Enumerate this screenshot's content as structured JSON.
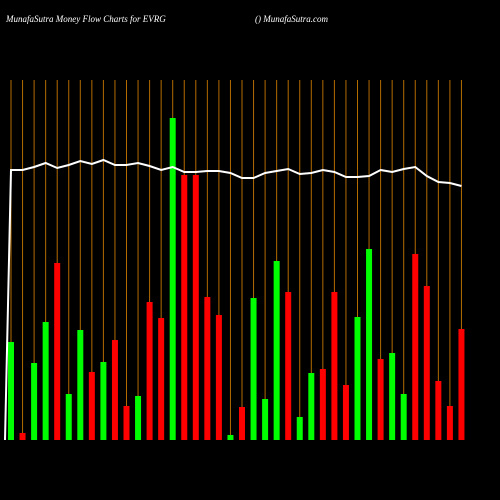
{
  "chart_data": {
    "type": "bar",
    "title": "MunafaSutra  Money Flow  Charts for EVRG",
    "subtitle": "() MunafaSutra.com",
    "categories": [
      null,
      null,
      null,
      null,
      null,
      null,
      null,
      null,
      null,
      null,
      null,
      null,
      null,
      null,
      null,
      null,
      null,
      null,
      null,
      null,
      null,
      null,
      null,
      null,
      null,
      null,
      null,
      null,
      null,
      null,
      null,
      null,
      null,
      null,
      null,
      null,
      null,
      null,
      null,
      null
    ],
    "values": [
      98,
      7,
      77,
      118,
      177,
      46,
      110,
      68,
      78,
      100,
      34,
      44,
      138,
      122,
      322,
      265,
      265,
      143,
      125,
      5,
      33,
      142,
      41,
      179,
      148,
      23,
      67,
      71,
      148,
      55,
      123,
      191,
      81,
      87,
      46,
      186,
      154,
      59,
      34,
      111
    ],
    "colors": [
      "#00ff00",
      "#ff0000",
      "#00ff00",
      "#00ff00",
      "#ff0000",
      "#00ff00",
      "#00ff00",
      "#ff0000",
      "#00ff00",
      "#ff0000",
      "#ff0000",
      "#00ff00",
      "#ff0000",
      "#ff0000",
      "#00ff00",
      "#ff0000",
      "#ff0000",
      "#ff0000",
      "#ff0000",
      "#00ff00",
      "#ff0000",
      "#00ff00",
      "#00ff00",
      "#00ff00",
      "#ff0000",
      "#00ff00",
      "#00ff00",
      "#ff0000",
      "#ff0000",
      "#ff0000",
      "#00ff00",
      "#00ff00",
      "#ff0000",
      "#00ff00",
      "#00ff00",
      "#ff0000",
      "#ff0000",
      "#ff0000",
      "#ff0000",
      "#ff0000"
    ],
    "line": {
      "color": "#ffffff",
      "values": [
        270,
        270,
        273,
        277,
        272,
        275,
        279,
        276,
        280,
        275,
        275,
        277,
        274,
        270,
        273,
        268,
        268,
        269,
        269,
        267,
        262,
        262,
        267,
        269,
        271,
        266,
        267,
        270,
        268,
        263,
        263,
        264,
        270,
        268,
        271,
        273,
        264,
        258,
        257,
        254
      ]
    },
    "ylim": [
      0,
      360
    ],
    "grid": true,
    "grid_color": "#b36b00"
  }
}
